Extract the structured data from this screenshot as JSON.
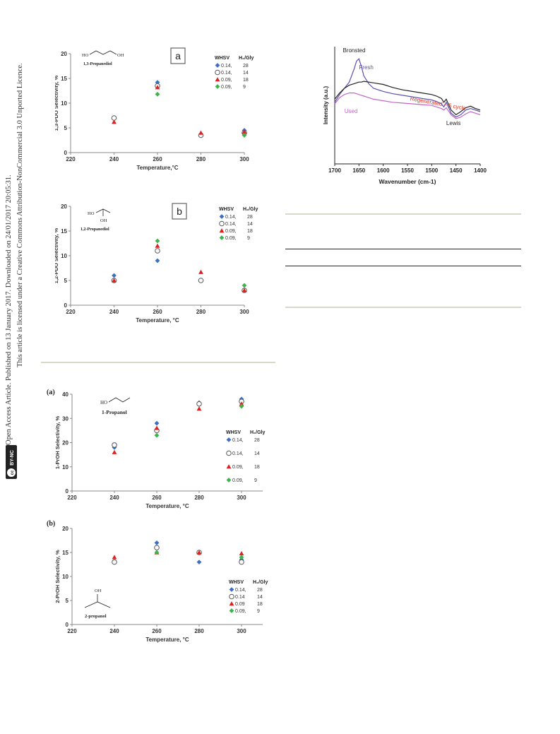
{
  "sidebar": {
    "line1": "Open Access Article. Published on 13 January 2017. Downloaded on 24/01/2017 20:05:31.",
    "line2": "This article is licensed under a Creative Commons Attribution-NonCommercial 3.0 Unported Licence.",
    "badge_cc": "cc",
    "badge_text": "BY-NC"
  },
  "legend_header": {
    "whsv": "WHSV",
    "h2gly": "H₂/Gly"
  },
  "colors": {
    "series1": "#3d6fc4",
    "series2": "#555555",
    "series3": "#e02020",
    "series4": "#3cb44b",
    "fresh": "#5a4fb0",
    "regenerated": "#222222",
    "used": "#c266c8",
    "regen_label": "#e03020"
  },
  "chart_data": [
    {
      "id": "c1",
      "type": "scatter",
      "panel_label": "a",
      "molecule_name": "1,3-Propanediol",
      "molecule_formula": "HO~~~OH",
      "xlabel": "Temperature,°C",
      "ylabel": "1,3-PDO Selectivity, %",
      "xlim": [
        220,
        300
      ],
      "ylim": [
        0,
        20
      ],
      "xticks": [
        "220",
        "240",
        "260",
        "280",
        "300"
      ],
      "yticks": [
        "0",
        "5",
        "10",
        "15",
        "20"
      ],
      "x": [
        240,
        260,
        280,
        300
      ],
      "series": [
        {
          "whsv": "0.14,",
          "h2gly": "28",
          "marker": "diamond",
          "values": [
            null,
            14.2,
            null,
            4.5
          ]
        },
        {
          "whsv": "0.14,",
          "h2gly": "14",
          "marker": "circle",
          "values": [
            7.0,
            13.5,
            3.5,
            4.0
          ]
        },
        {
          "whsv": "0.09,",
          "h2gly": "18",
          "marker": "triangle",
          "values": [
            6.2,
            13.2,
            4.0,
            4.2
          ]
        },
        {
          "whsv": "0.09,",
          "h2gly": "9",
          "marker": "diamond",
          "values": [
            null,
            11.8,
            null,
            3.5
          ]
        }
      ]
    },
    {
      "id": "c2",
      "type": "scatter",
      "panel_label": "b",
      "molecule_name": "1,2-Propanediol",
      "molecule_formula": "HO OH",
      "xlabel": "Temperature, °C",
      "ylabel": "1,2-PDO Selectivity, %",
      "xlim": [
        220,
        300
      ],
      "ylim": [
        0,
        20
      ],
      "xticks": [
        "220",
        "240",
        "260",
        "280",
        "300"
      ],
      "yticks": [
        "0",
        "5",
        "10",
        "15",
        "20"
      ],
      "x": [
        240,
        260,
        280,
        300
      ],
      "series": [
        {
          "whsv": "0.14,",
          "h2gly": "28",
          "marker": "diamond",
          "values": [
            6.0,
            9.0,
            null,
            null
          ]
        },
        {
          "whsv": "0.14,",
          "h2gly": "14",
          "marker": "circle",
          "values": [
            5.0,
            11.0,
            5.0,
            3.0
          ]
        },
        {
          "whsv": "0.09,",
          "h2gly": "18",
          "marker": "triangle",
          "values": [
            5.0,
            12.0,
            6.7,
            3.0
          ]
        },
        {
          "whsv": "0.09,",
          "h2gly": "9",
          "marker": "diamond",
          "values": [
            null,
            13.0,
            null,
            4.0
          ]
        }
      ]
    },
    {
      "id": "c3",
      "type": "line",
      "title_labels": {
        "bronsted": "Bronsted",
        "lewis": "Lewis",
        "fresh": "Fresh",
        "regenerated": "Regenerated – 5 cycle",
        "used": "Used"
      },
      "xlabel": "Wavenumber (cm-1)",
      "ylabel": "Intensity (a.u.)",
      "xlim": [
        1700,
        1400
      ],
      "xticks": [
        "1700",
        "1650",
        "1600",
        "1550",
        "1500",
        "1450",
        "1400"
      ],
      "x": [
        1700,
        1690,
        1680,
        1670,
        1660,
        1655,
        1650,
        1645,
        1640,
        1630,
        1620,
        1600,
        1580,
        1560,
        1540,
        1520,
        1500,
        1490,
        1480,
        1475,
        1470,
        1460,
        1450,
        1440,
        1430,
        1420,
        1410,
        1400
      ],
      "series": [
        {
          "name": "Fresh",
          "values": [
            0.52,
            0.62,
            0.7,
            0.78,
            0.95,
            1.05,
            1.08,
            0.98,
            0.86,
            0.76,
            0.7,
            0.66,
            0.63,
            0.61,
            0.59,
            0.57,
            0.55,
            0.53,
            0.5,
            0.46,
            0.52,
            0.38,
            0.33,
            0.36,
            0.42,
            0.44,
            0.42,
            0.4
          ]
        },
        {
          "name": "Regenerated – 5 cycle",
          "values": [
            0.56,
            0.64,
            0.7,
            0.74,
            0.76,
            0.77,
            0.78,
            0.78,
            0.79,
            0.78,
            0.77,
            0.75,
            0.71,
            0.68,
            0.66,
            0.64,
            0.62,
            0.6,
            0.57,
            0.52,
            0.56,
            0.42,
            0.36,
            0.4,
            0.45,
            0.47,
            0.44,
            0.42
          ]
        },
        {
          "name": "Used",
          "values": [
            0.5,
            0.58,
            0.62,
            0.64,
            0.64,
            0.63,
            0.62,
            0.61,
            0.6,
            0.58,
            0.56,
            0.54,
            0.52,
            0.51,
            0.5,
            0.49,
            0.48,
            0.46,
            0.44,
            0.42,
            0.45,
            0.36,
            0.31,
            0.33,
            0.37,
            0.4,
            0.38,
            0.36
          ]
        }
      ]
    },
    {
      "id": "c4",
      "type": "scatter",
      "panel_label": "(a)",
      "molecule_name": "1-Propanol",
      "molecule_formula": "HO",
      "xlabel": "Temperature, °C",
      "ylabel": "1-PrOH Selectivity, %",
      "xlim": [
        220,
        310
      ],
      "ylim": [
        0,
        40
      ],
      "xticks": [
        "220",
        "240",
        "260",
        "280",
        "300"
      ],
      "yticks": [
        "0",
        "10",
        "20",
        "30",
        "40"
      ],
      "x": [
        240,
        260,
        280,
        300
      ],
      "series": [
        {
          "whsv": "0.14,",
          "h2gly": "28",
          "marker": "diamond",
          "values": [
            18.0,
            28.0,
            36.5,
            38.0
          ]
        },
        {
          "whsv": "0.14,",
          "h2gly": "14",
          "marker": "circle",
          "values": [
            19.0,
            25.0,
            36.0,
            37.0
          ]
        },
        {
          "whsv": "0.09,",
          "h2gly": "18",
          "marker": "triangle",
          "values": [
            16.0,
            26.0,
            34.0,
            36.0
          ]
        },
        {
          "whsv": "0.09,",
          "h2gly": "9",
          "marker": "diamond",
          "values": [
            null,
            23.0,
            null,
            35.0
          ]
        }
      ]
    },
    {
      "id": "c5",
      "type": "scatter",
      "panel_label": "(b)",
      "molecule_name": "2-propanol",
      "molecule_formula": "OH",
      "xlabel": "Temperature, °C",
      "ylabel": "2-PrOH Selectivity, %",
      "xlim": [
        220,
        310
      ],
      "ylim": [
        0,
        20
      ],
      "xticks": [
        "220",
        "240",
        "260",
        "280",
        "300"
      ],
      "yticks": [
        "0",
        "5",
        "10",
        "15",
        "20"
      ],
      "x": [
        240,
        260,
        280,
        300
      ],
      "series": [
        {
          "whsv": "0.14,",
          "h2gly": "28",
          "marker": "diamond",
          "values": [
            null,
            17.0,
            13.0,
            13.5
          ]
        },
        {
          "whsv": "0.14",
          "h2gly": "14",
          "marker": "circle",
          "values": [
            13.0,
            16.0,
            15.0,
            13.0
          ]
        },
        {
          "whsv": "0.09",
          "h2gly": "18",
          "marker": "triangle",
          "values": [
            14.0,
            15.0,
            15.0,
            14.8
          ]
        },
        {
          "whsv": "0.09,",
          "h2gly": "9",
          "marker": "diamond",
          "values": [
            null,
            15.0,
            null,
            14.0
          ]
        }
      ]
    }
  ]
}
